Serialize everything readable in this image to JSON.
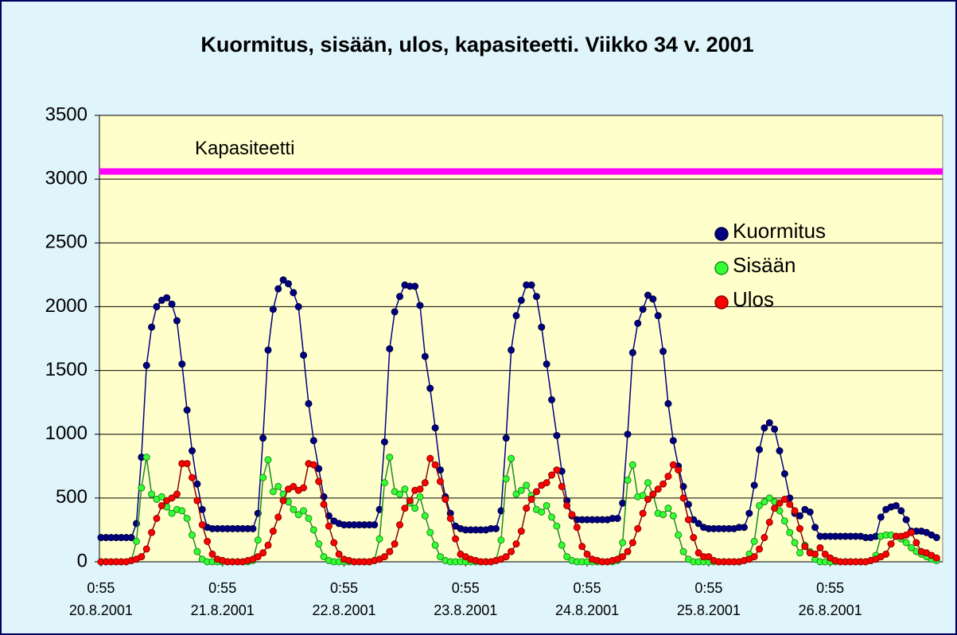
{
  "chart_data": {
    "type": "line",
    "title": "Kuormitus, sisään, ulos, kapasiteetti. Viikko 34 v. 2001",
    "x": [
      0,
      1,
      2,
      3,
      4,
      5,
      6,
      7,
      8,
      9,
      10,
      11,
      12,
      13,
      14,
      15,
      16,
      17,
      18,
      19,
      20,
      21,
      22,
      23,
      24,
      25,
      26,
      27,
      28,
      29,
      30,
      31,
      32,
      33,
      34,
      35,
      36,
      37,
      38,
      39,
      40,
      41,
      42,
      43,
      44,
      45,
      46,
      47,
      48,
      49,
      50,
      51,
      52,
      53,
      54,
      55,
      56,
      57,
      58,
      59,
      60,
      61,
      62,
      63,
      64,
      65,
      66,
      67,
      68,
      69,
      70,
      71,
      72,
      73,
      74,
      75,
      76,
      77,
      78,
      79,
      80,
      81,
      82,
      83,
      84,
      85,
      86,
      87,
      88,
      89,
      90,
      91,
      92,
      93,
      94,
      95,
      96,
      97,
      98,
      99,
      100,
      101,
      102,
      103,
      104,
      105,
      106,
      107,
      108,
      109,
      110,
      111,
      112,
      113,
      114,
      115,
      116,
      117,
      118,
      119,
      120,
      121,
      122,
      123,
      124,
      125,
      126,
      127,
      128,
      129,
      130,
      131,
      132,
      133,
      134,
      135,
      136,
      137,
      138,
      139,
      140,
      141,
      142,
      143,
      144,
      145,
      146,
      147,
      148,
      149,
      150,
      151,
      152,
      153,
      154,
      155,
      156,
      157,
      158,
      159,
      160,
      161,
      162,
      163,
      164,
      165
    ],
    "xlim": [
      -0.3,
      166.2
    ],
    "xticks": [
      {
        "value": 0,
        "label": "0:55"
      },
      {
        "value": 24,
        "label": "0:55"
      },
      {
        "value": 48,
        "label": "0:55"
      },
      {
        "value": 72,
        "label": "0:55"
      },
      {
        "value": 96,
        "label": "0:55"
      },
      {
        "value": 120,
        "label": "0:55"
      },
      {
        "value": 144,
        "label": "0:55"
      }
    ],
    "xtick_dates": [
      "20.8.2001",
      "21.8.2001",
      "22.8.2001",
      "23.8.2001",
      "24.8.2001",
      "25.8.2001",
      "26.8.2001"
    ],
    "ylim": [
      0,
      3500
    ],
    "yticks": [
      0,
      500,
      1000,
      1500,
      2000,
      2500,
      3000,
      3500
    ],
    "grid": true,
    "legend": "right",
    "capacity": {
      "label": "Kapasiteetti",
      "value": 3060,
      "color": "#ff00ff"
    },
    "series": [
      {
        "name": "Kuormitus",
        "color": "#000080",
        "values": [
          190,
          190,
          190,
          190,
          190,
          190,
          190,
          300,
          820,
          1540,
          1840,
          2000,
          2050,
          2070,
          2020,
          1890,
          1550,
          1190,
          870,
          610,
          410,
          270,
          260,
          260,
          260,
          260,
          260,
          260,
          260,
          260,
          260,
          380,
          970,
          1660,
          1980,
          2140,
          2210,
          2180,
          2110,
          2000,
          1620,
          1240,
          950,
          730,
          510,
          360,
          320,
          300,
          290,
          290,
          290,
          290,
          290,
          290,
          290,
          410,
          940,
          1670,
          1960,
          2080,
          2170,
          2160,
          2160,
          2010,
          1610,
          1360,
          1050,
          720,
          510,
          380,
          280,
          260,
          250,
          250,
          250,
          250,
          250,
          260,
          260,
          400,
          970,
          1660,
          1930,
          2050,
          2170,
          2170,
          2080,
          1840,
          1550,
          1270,
          990,
          710,
          480,
          360,
          330,
          330,
          330,
          330,
          330,
          330,
          330,
          340,
          340,
          460,
          1000,
          1640,
          1870,
          1980,
          2090,
          2060,
          1930,
          1650,
          1240,
          950,
          750,
          590,
          450,
          330,
          300,
          270,
          260,
          260,
          260,
          260,
          260,
          260,
          270,
          270,
          380,
          600,
          880,
          1050,
          1090,
          1040,
          870,
          690,
          500,
          380,
          360,
          410,
          390,
          270,
          200,
          200,
          200,
          200,
          200,
          200,
          200,
          200,
          200,
          190,
          190,
          200,
          350,
          410,
          430,
          440,
          400,
          330,
          240,
          240,
          240,
          230,
          210,
          190
        ]
      },
      {
        "name": "Sisään",
        "color": "#33ff33",
        "values": [
          0,
          0,
          0,
          0,
          0,
          0,
          10,
          160,
          580,
          820,
          530,
          490,
          510,
          430,
          380,
          410,
          400,
          340,
          210,
          80,
          20,
          0,
          0,
          0,
          0,
          0,
          0,
          0,
          0,
          0,
          10,
          170,
          660,
          800,
          550,
          590,
          530,
          470,
          410,
          370,
          400,
          340,
          250,
          140,
          40,
          10,
          0,
          0,
          0,
          0,
          0,
          0,
          0,
          0,
          10,
          180,
          620,
          820,
          550,
          530,
          570,
          460,
          420,
          510,
          360,
          230,
          130,
          40,
          10,
          0,
          0,
          0,
          0,
          0,
          0,
          0,
          0,
          0,
          10,
          170,
          650,
          810,
          530,
          560,
          600,
          520,
          410,
          390,
          440,
          350,
          280,
          130,
          40,
          10,
          0,
          0,
          0,
          0,
          0,
          0,
          0,
          0,
          10,
          150,
          640,
          760,
          510,
          520,
          620,
          530,
          380,
          370,
          420,
          360,
          210,
          80,
          20,
          0,
          0,
          0,
          0,
          0,
          0,
          0,
          0,
          0,
          0,
          10,
          60,
          160,
          440,
          470,
          500,
          470,
          400,
          320,
          230,
          150,
          70,
          130,
          80,
          20,
          0,
          0,
          0,
          0,
          0,
          0,
          0,
          0,
          0,
          0,
          10,
          50,
          200,
          210,
          210,
          200,
          180,
          150,
          110,
          80,
          60,
          40,
          20,
          10
        ]
      },
      {
        "name": "Ulos",
        "color": "#ff0000",
        "values": [
          0,
          0,
          0,
          0,
          0,
          0,
          10,
          20,
          40,
          100,
          230,
          340,
          440,
          480,
          500,
          530,
          770,
          770,
          660,
          480,
          290,
          160,
          60,
          20,
          10,
          0,
          0,
          0,
          0,
          10,
          20,
          40,
          70,
          130,
          240,
          350,
          480,
          570,
          590,
          560,
          580,
          770,
          760,
          630,
          450,
          280,
          150,
          60,
          20,
          10,
          0,
          0,
          0,
          0,
          10,
          20,
          40,
          80,
          140,
          290,
          420,
          480,
          560,
          570,
          620,
          810,
          760,
          630,
          490,
          340,
          180,
          60,
          40,
          20,
          10,
          0,
          0,
          0,
          10,
          20,
          40,
          80,
          140,
          240,
          420,
          490,
          550,
          600,
          620,
          680,
          720,
          590,
          440,
          370,
          270,
          120,
          60,
          20,
          10,
          0,
          0,
          10,
          20,
          40,
          80,
          150,
          260,
          380,
          490,
          530,
          570,
          610,
          670,
          760,
          720,
          500,
          330,
          190,
          70,
          40,
          40,
          10,
          0,
          0,
          0,
          0,
          0,
          10,
          20,
          40,
          100,
          190,
          310,
          420,
          460,
          490,
          450,
          400,
          260,
          120,
          70,
          60,
          110,
          60,
          30,
          10,
          0,
          0,
          0,
          0,
          0,
          0,
          10,
          20,
          40,
          60,
          140,
          200,
          200,
          210,
          230,
          150,
          80,
          70,
          50,
          30
        ]
      }
    ]
  }
}
